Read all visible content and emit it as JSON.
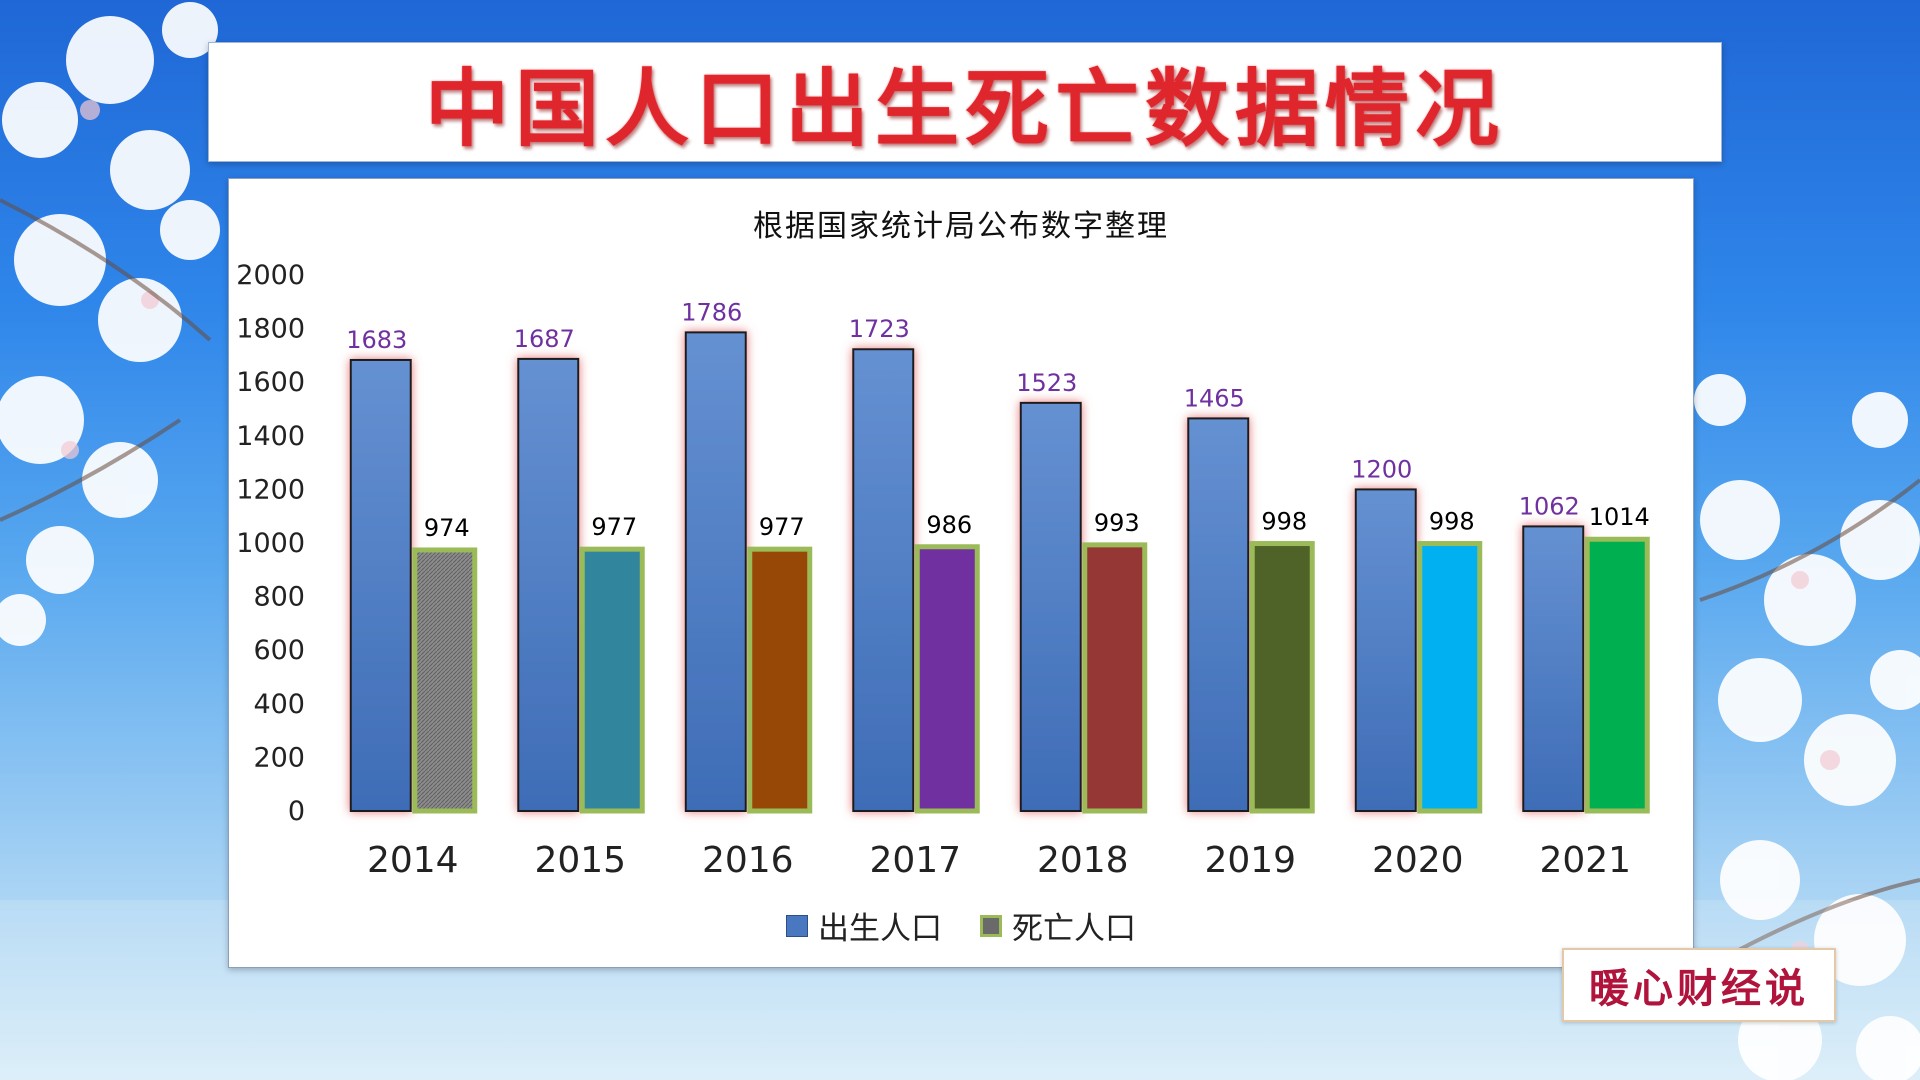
{
  "page_title": "中国人口出生死亡数据情况",
  "watermark": "暖心财经说",
  "colors": {
    "birth_bar": "#4a78c0",
    "birth_glow": "#e36a6a",
    "death_border": "#9bbb59",
    "label_purple": "#7030a0",
    "label_black": "#000000"
  },
  "chart_data": {
    "type": "bar",
    "title": "根据国家统计局公布数字整理",
    "xlabel": "",
    "ylabel": "",
    "ylim": [
      0,
      2000
    ],
    "yticks": [
      0,
      200,
      400,
      600,
      800,
      1000,
      1200,
      1400,
      1600,
      1800,
      2000
    ],
    "grid": false,
    "legend_position": "bottom",
    "categories": [
      "2014",
      "2015",
      "2016",
      "2017",
      "2018",
      "2019",
      "2020",
      "2021"
    ],
    "series": [
      {
        "name": "出生人口",
        "values": [
          1683,
          1687,
          1786,
          1723,
          1523,
          1465,
          1200,
          1062
        ],
        "color": "#4a78c0"
      },
      {
        "name": "死亡人口",
        "values": [
          974,
          977,
          977,
          986,
          993,
          998,
          998,
          1014
        ],
        "colors": [
          "#7f7f7f",
          "#31859c",
          "#974806",
          "#7030a0",
          "#953735",
          "#4f6228",
          "#00b0f0",
          "#00b050"
        ]
      }
    ]
  }
}
